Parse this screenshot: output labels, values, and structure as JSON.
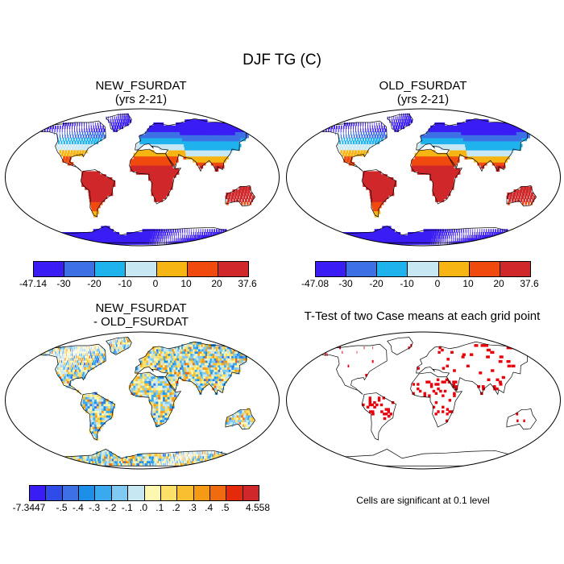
{
  "figure": {
    "title": "DJF TG (C)"
  },
  "panels": [
    {
      "title": "NEW_FSURDAT\n(yrs 2-21)",
      "colorbar": {
        "colors": [
          "#3A1CF5",
          "#3D6FE5",
          "#1FB3EE",
          "#C7E7F3",
          "#F6B512",
          "#F04A0E",
          "#D0282A"
        ],
        "labels": [
          "-47.14",
          "-30",
          "-20",
          "-10",
          "0",
          "10",
          "20",
          "37.6"
        ]
      }
    },
    {
      "title": "OLD_FSURDAT\n(yrs 2-21)",
      "colorbar": {
        "colors": [
          "#3A1CF5",
          "#3D6FE5",
          "#1FB3EE",
          "#C7E7F3",
          "#F6B512",
          "#F04A0E",
          "#D0282A"
        ],
        "labels": [
          "-47.08",
          "-30",
          "-20",
          "-10",
          "0",
          "10",
          "20",
          "37.6"
        ]
      }
    },
    {
      "title": "NEW_FSURDAT\n- OLD_FSURDAT",
      "colorbar": {
        "colors": [
          "#3A1CF5",
          "#2F4BE8",
          "#3D6FE5",
          "#1E8FE8",
          "#3BA9EE",
          "#7FC9F2",
          "#C7E7F3",
          "#FDF7B0",
          "#FDE067",
          "#F8C030",
          "#F49A14",
          "#F06A10",
          "#E52A0C",
          "#D0282A"
        ],
        "labels": [
          "-7.3447",
          "-.5",
          "-.4",
          "-.3",
          "-.2",
          "-.1",
          ".0",
          ".1",
          ".2",
          ".3",
          ".4",
          ".5",
          "4.558"
        ]
      }
    },
    {
      "title": "T-Test of two Case means at each grid point",
      "note": "Cells are significant at 0.1 level"
    }
  ]
}
